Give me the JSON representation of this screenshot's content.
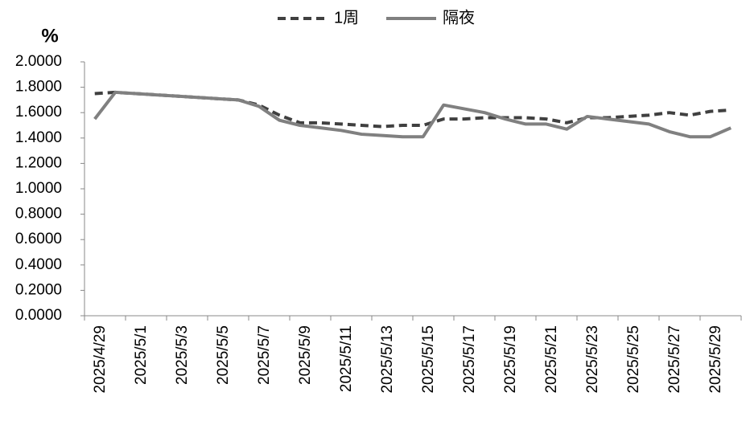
{
  "chart_data": {
    "type": "line",
    "y_label": "%",
    "categories": [
      "2025/4/29",
      null,
      "2025/5/1",
      null,
      "2025/5/3",
      null,
      "2025/5/5",
      null,
      "2025/5/7",
      null,
      "2025/5/9",
      null,
      "2025/5/11",
      null,
      "2025/5/13",
      null,
      "2025/5/15",
      null,
      "2025/5/17",
      null,
      "2025/5/19",
      null,
      "2025/5/21",
      null,
      "2025/5/23",
      null,
      "2025/5/25",
      null,
      "2025/5/27",
      null,
      "2025/5/29",
      null
    ],
    "series": [
      {
        "name": "1周",
        "color": "#404040",
        "dash": true,
        "values": [
          1.75,
          1.76,
          1.75,
          1.74,
          1.73,
          1.72,
          1.71,
          1.7,
          1.66,
          1.58,
          1.52,
          1.52,
          1.51,
          1.5,
          1.49,
          1.5,
          1.5,
          1.55,
          1.55,
          1.56,
          1.56,
          1.56,
          1.55,
          1.52,
          1.56,
          1.56,
          1.57,
          1.58,
          1.6,
          1.58,
          1.61,
          1.62
        ]
      },
      {
        "name": "隔夜",
        "color": "#808080",
        "dash": false,
        "values": [
          1.55,
          1.76,
          1.75,
          1.74,
          1.73,
          1.72,
          1.71,
          1.7,
          1.65,
          1.54,
          1.5,
          1.48,
          1.46,
          1.43,
          1.42,
          1.41,
          1.41,
          1.66,
          1.63,
          1.6,
          1.55,
          1.51,
          1.51,
          1.47,
          1.57,
          1.55,
          1.53,
          1.51,
          1.45,
          1.41,
          1.41,
          1.48
        ]
      }
    ],
    "ylim": [
      0,
      2
    ],
    "yticks": [
      {
        "value": 0,
        "label": "0.0000"
      },
      {
        "value": 0.2,
        "label": "0.2000"
      },
      {
        "value": 0.4,
        "label": "0.4000"
      },
      {
        "value": 0.6,
        "label": "0.6000"
      },
      {
        "value": 0.8,
        "label": "0.8000"
      },
      {
        "value": 1,
        "label": "1.0000"
      },
      {
        "value": 1.2,
        "label": "1.2000"
      },
      {
        "value": 1.4,
        "label": "1.4000"
      },
      {
        "value": 1.6,
        "label": "1.6000"
      },
      {
        "value": 1.8,
        "label": "1.8000"
      },
      {
        "value": 2,
        "label": "2.0000"
      }
    ],
    "grid": false
  }
}
